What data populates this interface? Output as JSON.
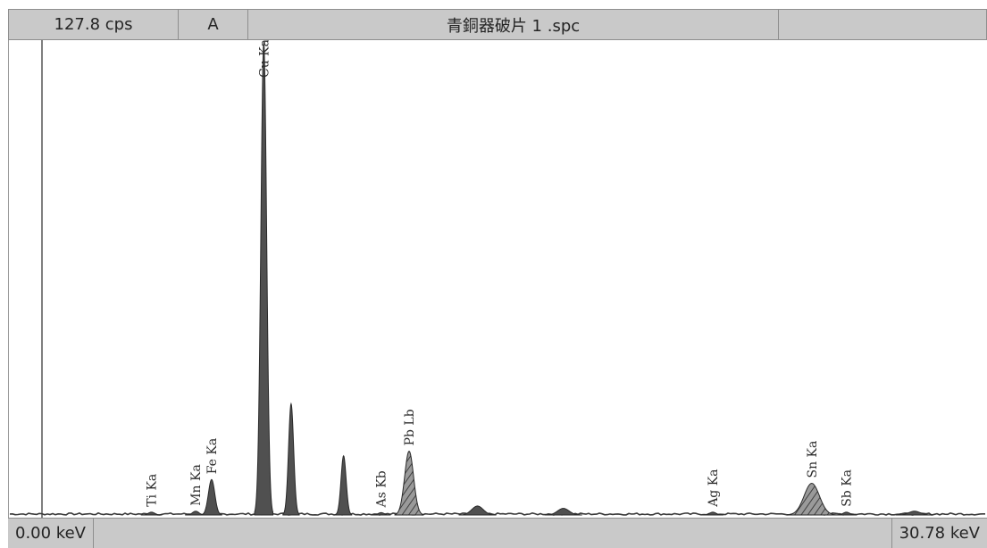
{
  "header": {
    "count_rate": "127.8 cps",
    "channel": "A",
    "filename": "青銅器破片 1 .spc",
    "extra": ""
  },
  "footer": {
    "energy_min_label": "0.00 keV",
    "energy_max_label": "30.78 keV"
  },
  "colors": {
    "panel": "#c9c9c9",
    "border": "#8e8e8e",
    "peak_fill": "#505050",
    "hatched_fill": "#7a7a7a",
    "text": "#242424"
  },
  "chart_data": {
    "type": "area",
    "title": "",
    "xlabel": "",
    "ylabel": "",
    "x_unit": "keV",
    "xlim": [
      0,
      30.78
    ],
    "ylim": [
      0,
      100
    ],
    "grid": false,
    "legend": "none",
    "peaks": [
      {
        "name": "Ti Ka",
        "energy": 4.51,
        "height": 0.6,
        "width": 0.1,
        "label": true,
        "hatched": false
      },
      {
        "name": "Mn Ka",
        "energy": 5.9,
        "height": 0.8,
        "width": 0.1,
        "label": true,
        "hatched": false
      },
      {
        "name": "Fe Ka",
        "energy": 6.4,
        "height": 7.5,
        "width": 0.1,
        "label": true,
        "hatched": false
      },
      {
        "name": "Cu Ka",
        "energy": 8.04,
        "height": 100,
        "width": 0.09,
        "label": true,
        "hatched": false
      },
      {
        "name": "",
        "energy": 8.9,
        "height": 23.5,
        "width": 0.08,
        "label": false,
        "hatched": false
      },
      {
        "name": "",
        "energy": 10.55,
        "height": 12.5,
        "width": 0.08,
        "label": false,
        "hatched": false
      },
      {
        "name": "As Kb",
        "energy": 11.73,
        "height": 0.5,
        "width": 0.09,
        "label": true,
        "hatched": false
      },
      {
        "name": "Pb Lb",
        "energy": 12.61,
        "height": 13.5,
        "width": 0.14,
        "label": true,
        "hatched": true
      },
      {
        "name": "",
        "energy": 14.76,
        "height": 1.9,
        "width": 0.18,
        "label": false,
        "hatched": false
      },
      {
        "name": "",
        "energy": 17.46,
        "height": 1.4,
        "width": 0.18,
        "label": false,
        "hatched": false
      },
      {
        "name": "Ag Ka",
        "energy": 22.16,
        "height": 0.6,
        "width": 0.1,
        "label": true,
        "hatched": false
      },
      {
        "name": "Sn Ka",
        "energy": 25.27,
        "height": 6.7,
        "width": 0.24,
        "label": true,
        "hatched": true
      },
      {
        "name": "Sb Ka",
        "energy": 26.36,
        "height": 0.6,
        "width": 0.1,
        "label": true,
        "hatched": false
      },
      {
        "name": "",
        "energy": 28.5,
        "height": 0.8,
        "width": 0.18,
        "label": false,
        "hatched": false
      }
    ]
  }
}
